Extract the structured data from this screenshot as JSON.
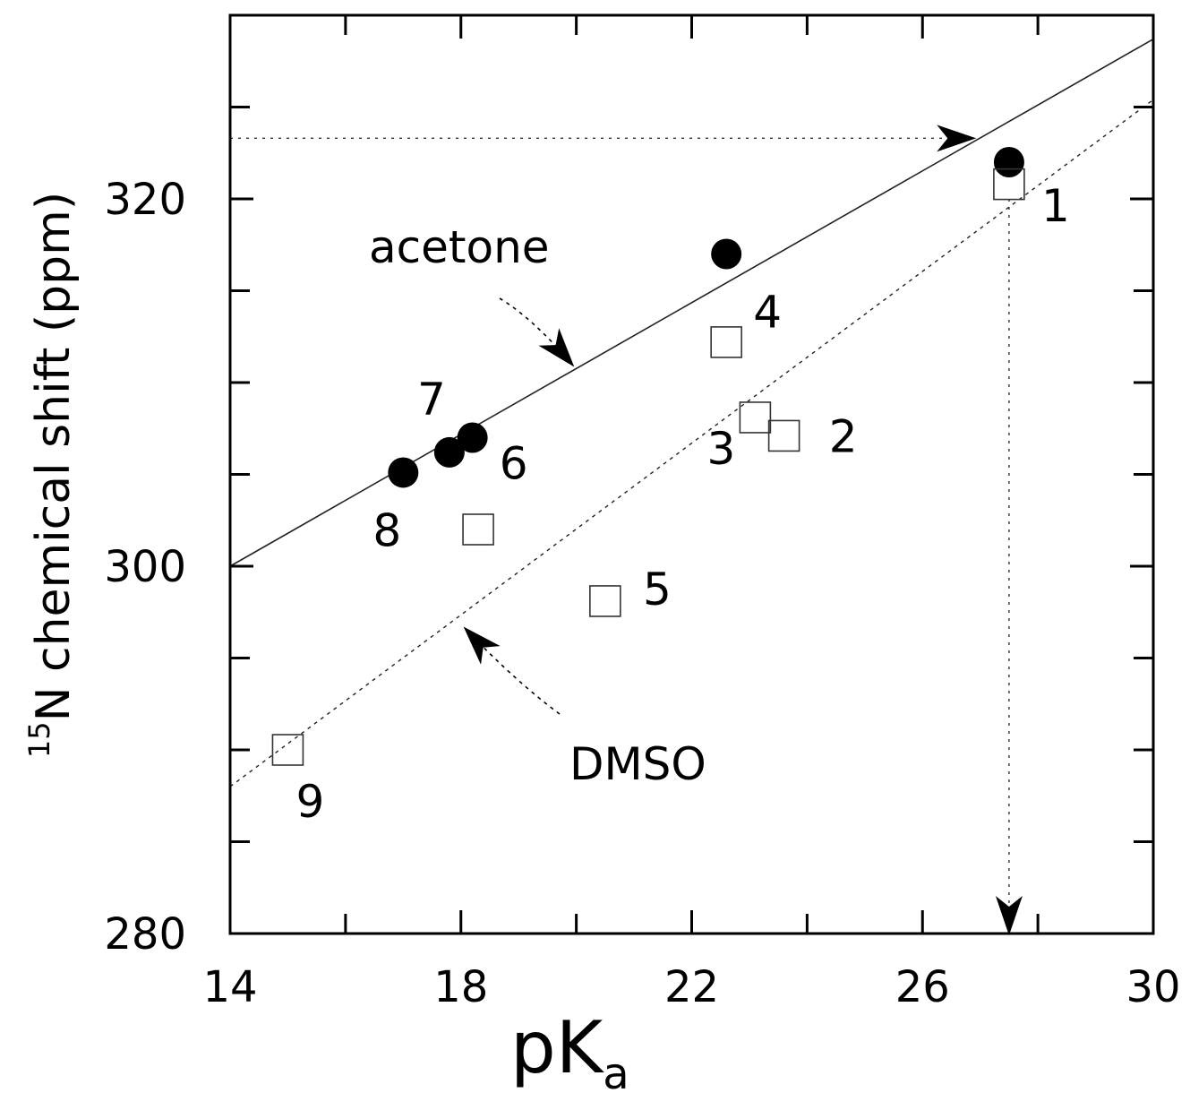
{
  "chart_data": {
    "type": "scatter",
    "xlabel": "pK",
    "xlabel_sub": "a",
    "ylabel_sup": "15",
    "ylabel": "N chemical shift (ppm)",
    "xlim": [
      14,
      30
    ],
    "ylim": [
      280,
      330
    ],
    "x_major_ticks": [
      14,
      18,
      22,
      26,
      30
    ],
    "x_major_tick_labels": [
      "14",
      "18",
      "22",
      "26",
      "30"
    ],
    "x_minor_ticks": [
      16,
      20,
      24,
      28
    ],
    "y_major_ticks": [
      280,
      300,
      320
    ],
    "y_major_tick_labels": [
      "280",
      "300",
      "320"
    ],
    "y_minor_ticks": [
      285,
      290,
      295,
      305,
      310,
      315,
      325
    ],
    "grid": false,
    "series": [
      {
        "solvent_label": "acetone",
        "marker": "filled-circle",
        "points": [
          {
            "x": 27.5,
            "y": 322.0,
            "label": "1"
          },
          {
            "x": 22.6,
            "y": 317.0,
            "label": "4"
          },
          {
            "x": 18.2,
            "y": 307.0,
            "label": "6"
          },
          {
            "x": 17.8,
            "y": 306.2,
            "label": "7"
          },
          {
            "x": 17.0,
            "y": 305.1,
            "label": "8"
          }
        ],
        "fit_line": {
          "x": [
            14,
            30
          ],
          "y": [
            300.0,
            328.7
          ],
          "style": "solid"
        }
      },
      {
        "solvent_label": "DMSO",
        "marker": "open-square",
        "points": [
          {
            "x": 27.5,
            "y": 320.8
          },
          {
            "x": 23.6,
            "y": 307.1,
            "label": "2"
          },
          {
            "x": 23.1,
            "y": 308.1,
            "label": "3"
          },
          {
            "x": 22.6,
            "y": 312.2
          },
          {
            "x": 20.5,
            "y": 298.1,
            "label": "5"
          },
          {
            "x": 18.3,
            "y": 302.0
          },
          {
            "x": 15.0,
            "y": 290.0,
            "label": "9"
          }
        ],
        "fit_line": {
          "x": [
            14,
            30
          ],
          "y": [
            288.0,
            325.4
          ],
          "style": "dashed"
        }
      }
    ],
    "annotations": [
      {
        "text": "acetone",
        "arrow_to_series": "acetone"
      },
      {
        "text": "DMSO",
        "arrow_to_series": "DMSO"
      }
    ],
    "guide_lines": [
      {
        "from": [
          14,
          323.3
        ],
        "to": [
          26.9,
          323.3
        ],
        "style": "dotted",
        "arrow": "end"
      },
      {
        "from": [
          27.5,
          320.0
        ],
        "to": [
          27.5,
          280.0
        ],
        "style": "dotted",
        "arrow": "end"
      }
    ]
  }
}
